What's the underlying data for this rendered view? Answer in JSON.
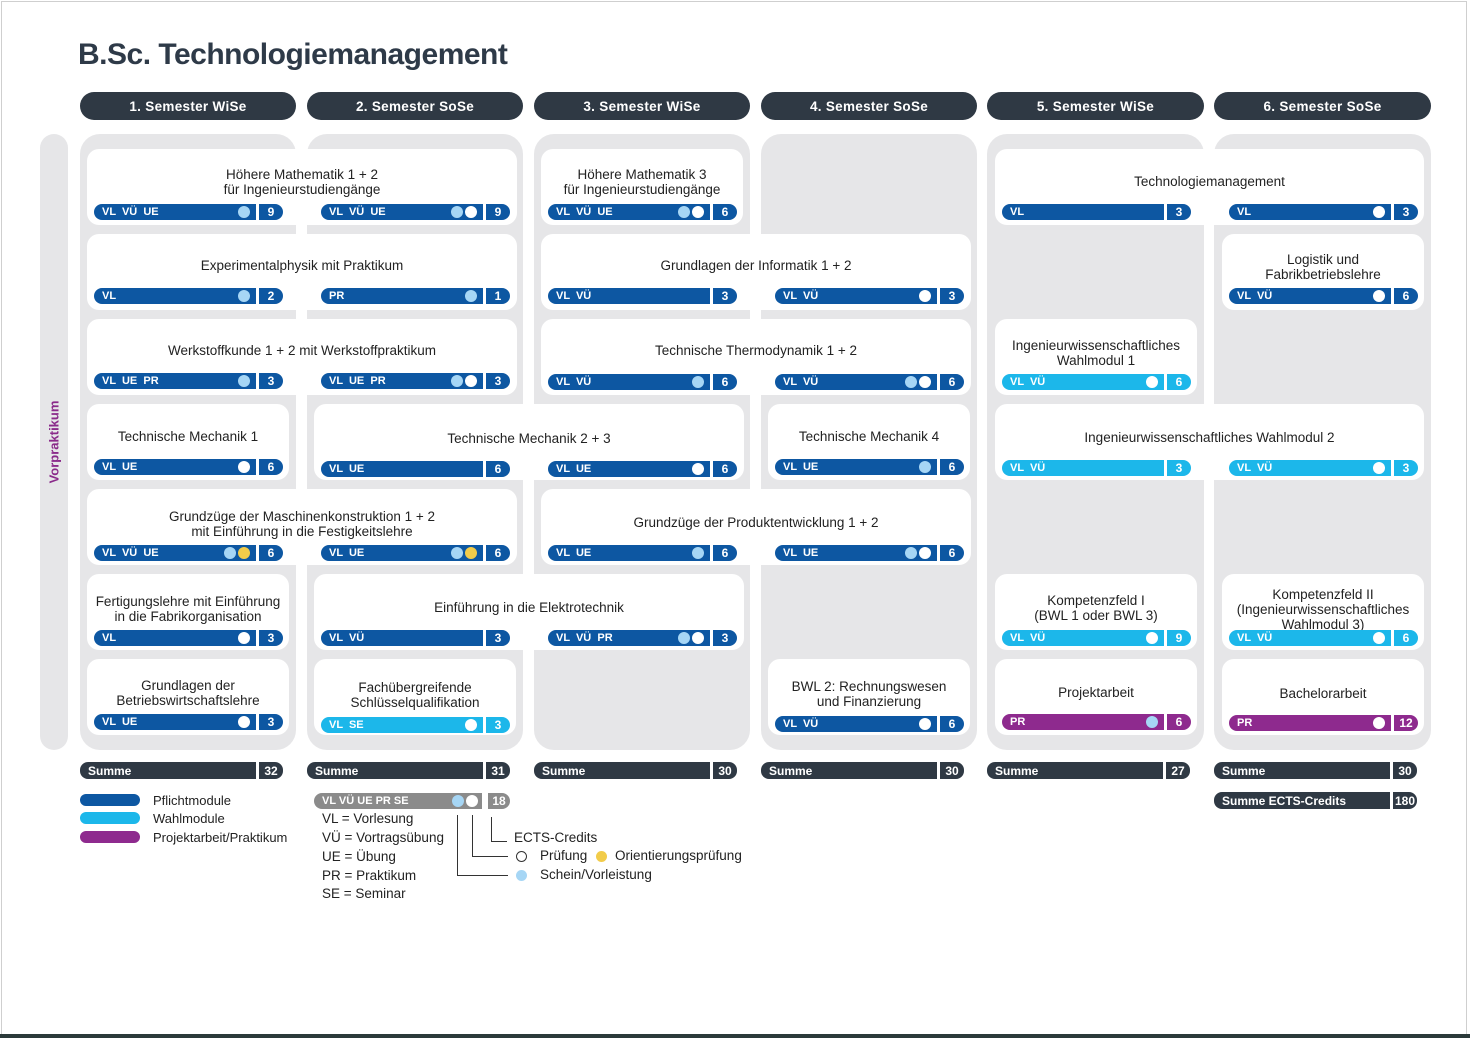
{
  "title": "B.Sc. Technologiemanagement",
  "vorpraktikum": "Vorpraktikum",
  "semesters": [
    {
      "label": "1. Semester  WiSe"
    },
    {
      "label": "2. Semester  SoSe"
    },
    {
      "label": "3. Semester  WiSe"
    },
    {
      "label": "4. Semester  SoSe"
    },
    {
      "label": "5. Semester  WiSe"
    },
    {
      "label": "6. Semester  SoSe"
    }
  ],
  "modules": [
    {
      "title": "Höhere Mathematik 1 + 2\nfür Ingenieurstudiengänge",
      "bars": [
        {
          "types": "VL  VÜ  UE",
          "ects": "9",
          "kind": "p",
          "dots": [
            "light"
          ]
        },
        {
          "types": "VL  VÜ  UE",
          "ects": "9",
          "kind": "p",
          "dots": [
            "light",
            "white"
          ]
        }
      ]
    },
    {
      "title": "Höhere Mathematik 3\nfür Ingenieurstudiengänge",
      "bars": [
        {
          "types": "VL  VÜ  UE",
          "ects": "6",
          "kind": "p",
          "dots": [
            "light",
            "white"
          ]
        }
      ]
    },
    {
      "title": "Technologiemanagement",
      "bars": [
        {
          "types": "VL",
          "ects": "3",
          "kind": "p",
          "dots": []
        },
        {
          "types": "VL",
          "ects": "3",
          "kind": "p",
          "dots": [
            "white"
          ]
        }
      ]
    },
    {
      "title": "Experimentalphysik mit Praktikum",
      "bars": [
        {
          "types": "VL",
          "ects": "2",
          "kind": "p",
          "dots": [
            "light"
          ]
        },
        {
          "types": "PR",
          "ects": "1",
          "kind": "p",
          "dots": [
            "light"
          ]
        }
      ]
    },
    {
      "title": "Grundlagen der Informatik 1 + 2",
      "bars": [
        {
          "types": "VL  VÜ",
          "ects": "3",
          "kind": "p",
          "dots": []
        },
        {
          "types": "VL  VÜ",
          "ects": "3",
          "kind": "p",
          "dots": [
            "white"
          ]
        }
      ]
    },
    {
      "title": "Logistik und\nFabrikbetriebslehre",
      "bars": [
        {
          "types": "VL  VÜ",
          "ects": "6",
          "kind": "p",
          "dots": [
            "white"
          ]
        }
      ]
    },
    {
      "title": "Werkstoffkunde 1 + 2 mit Werkstoffpraktikum",
      "bars": [
        {
          "types": "VL  UE  PR",
          "ects": "3",
          "kind": "p",
          "dots": [
            "light"
          ]
        },
        {
          "types": "VL  UE  PR",
          "ects": "3",
          "kind": "p",
          "dots": [
            "light",
            "white"
          ]
        }
      ]
    },
    {
      "title": "Technische Thermodynamik 1 + 2",
      "bars": [
        {
          "types": "VL  VÜ",
          "ects": "6",
          "kind": "p",
          "dots": [
            "light"
          ]
        },
        {
          "types": "VL  VÜ",
          "ects": "6",
          "kind": "p",
          "dots": [
            "light",
            "white"
          ]
        }
      ]
    },
    {
      "title": "Ingenieurwissenschaftliches\nWahlmodul 1",
      "bars": [
        {
          "types": "VL  VÜ",
          "ects": "6",
          "kind": "w",
          "dots": [
            "white"
          ]
        }
      ]
    },
    {
      "title": "Technische Mechanik 1",
      "bars": [
        {
          "types": "VL  UE",
          "ects": "6",
          "kind": "p",
          "dots": [
            "white"
          ]
        }
      ]
    },
    {
      "title": "Technische Mechanik 2 + 3",
      "bars": [
        {
          "types": "VL  UE",
          "ects": "6",
          "kind": "p",
          "dots": []
        },
        {
          "types": "VL  UE",
          "ects": "6",
          "kind": "p",
          "dots": [
            "white"
          ]
        }
      ]
    },
    {
      "title": "Technische Mechanik 4",
      "bars": [
        {
          "types": "VL  UE",
          "ects": "6",
          "kind": "p",
          "dots": [
            "light"
          ]
        }
      ]
    },
    {
      "title": "Ingenieurwissenschaftliches Wahlmodul 2",
      "bars": [
        {
          "types": "VL  VÜ",
          "ects": "3",
          "kind": "w",
          "dots": []
        },
        {
          "types": "VL  VÜ",
          "ects": "3",
          "kind": "w",
          "dots": [
            "white"
          ]
        }
      ]
    },
    {
      "title": "Grundzüge der Maschinenkonstruktion 1 + 2\nmit Einführung in die Festigkeitslehre",
      "bars": [
        {
          "types": "VL  VÜ  UE",
          "ects": "6",
          "kind": "p",
          "dots": [
            "light",
            "yellow"
          ]
        },
        {
          "types": "VL  UE",
          "ects": "6",
          "kind": "p",
          "dots": [
            "light",
            "yellow"
          ]
        }
      ]
    },
    {
      "title": "Grundzüge der Produktentwicklung 1 + 2",
      "bars": [
        {
          "types": "VL  UE",
          "ects": "6",
          "kind": "p",
          "dots": [
            "light"
          ]
        },
        {
          "types": "VL  UE",
          "ects": "6",
          "kind": "p",
          "dots": [
            "light",
            "white"
          ]
        }
      ]
    },
    {
      "title": "Fertigungslehre mit Einführung\nin die Fabrikorganisation",
      "bars": [
        {
          "types": "VL",
          "ects": "3",
          "kind": "p",
          "dots": [
            "white"
          ]
        }
      ]
    },
    {
      "title": "Einführung in die Elektrotechnik",
      "bars": [
        {
          "types": "VL  VÜ",
          "ects": "3",
          "kind": "p",
          "dots": []
        },
        {
          "types": "VL  VÜ  PR",
          "ects": "3",
          "kind": "p",
          "dots": [
            "light",
            "white"
          ]
        }
      ]
    },
    {
      "title": "Kompetenzfeld I\n(BWL 1 oder BWL 3)",
      "bars": [
        {
          "types": "VL  VÜ",
          "ects": "9",
          "kind": "w",
          "dots": [
            "white"
          ]
        }
      ]
    },
    {
      "title": "Kompetenzfeld II\n(Ingenieurwissenschaftliches\nWahlmodul 3)",
      "bars": [
        {
          "types": "VL  VÜ",
          "ects": "6",
          "kind": "w",
          "dots": [
            "white"
          ]
        }
      ]
    },
    {
      "title": "Grundlagen der\nBetriebswirtschaftslehre",
      "bars": [
        {
          "types": "VL  UE",
          "ects": "3",
          "kind": "p",
          "dots": [
            "white"
          ]
        }
      ]
    },
    {
      "title": "Fachübergreifende\nSchlüsselqualifikation",
      "bars": [
        {
          "types": "VL  SE",
          "ects": "3",
          "kind": "w",
          "dots": [
            "white"
          ]
        }
      ]
    },
    {
      "title": "BWL 2: Rechnungswesen\nund Finanzierung",
      "bars": [
        {
          "types": "VL  VÜ",
          "ects": "6",
          "kind": "p",
          "dots": [
            "white"
          ]
        }
      ]
    },
    {
      "title": "Projektarbeit",
      "bars": [
        {
          "types": "PR",
          "ects": "6",
          "kind": "pr",
          "dots": [
            "light"
          ]
        }
      ]
    },
    {
      "title": "Bachelorarbeit",
      "bars": [
        {
          "types": "PR",
          "ects": "12",
          "kind": "pr",
          "dots": [
            "white"
          ]
        }
      ]
    }
  ],
  "sums": [
    {
      "label": "Summe",
      "value": "32"
    },
    {
      "label": "Summe",
      "value": "31"
    },
    {
      "label": "Summe",
      "value": "30"
    },
    {
      "label": "Summe",
      "value": "30"
    },
    {
      "label": "Summe",
      "value": "27"
    },
    {
      "label": "Summe",
      "value": "30"
    }
  ],
  "total": {
    "label": "Summe ECTS-Credits",
    "value": "180"
  },
  "legend": {
    "pflicht": "Pflichtmodule",
    "wahl": "Wahlmodule",
    "projekt": "Projektarbeit/Praktikum",
    "sample_types": "VL  VÜ  UE  PR  SE",
    "sample_ects": "18",
    "abbreviations": [
      "VL = Vorlesung",
      "VÜ = Vortragsübung",
      "UE = Übung",
      "PR = Praktikum",
      "SE = Seminar"
    ],
    "ects_label": "ECTS-Credits",
    "pruefung": "Prüfung",
    "orientierung": "Orientierungsprüfung",
    "schein": "Schein/Vorleistung"
  },
  "colors": {
    "pflicht": "#0d57a2",
    "wahl": "#1cb7ea",
    "projekt": "#8e2a8e",
    "header": "#2f3944",
    "column": "#e6e6e8",
    "schein": "#a6d6f5",
    "orientierung": "#f2cc4a"
  }
}
